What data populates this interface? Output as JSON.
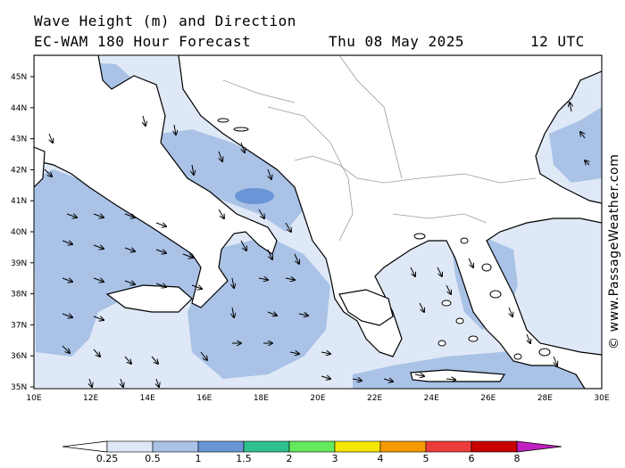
{
  "header": {
    "line1": "Wave Height (m) and Direction",
    "model": "EC-WAM 180 Hour Forecast",
    "date": "Thu 08 May 2025",
    "time": "12 UTC"
  },
  "copyright": "© www.PassageWeather.com",
  "axes": {
    "lat_labels": [
      "45N",
      "44N",
      "43N",
      "42N",
      "41N",
      "40N",
      "39N",
      "38N",
      "37N",
      "36N",
      "35N"
    ],
    "lon_labels": [
      "10E",
      "12E",
      "14E",
      "16E",
      "18E",
      "20E",
      "22E",
      "24E",
      "26E",
      "28E",
      "30E"
    ]
  },
  "colorbar": {
    "labels": [
      "0.25",
      "0.5",
      "1",
      "1.5",
      "2",
      "3",
      "4",
      "5",
      "6",
      "8"
    ],
    "colors": [
      "#dfe8f6",
      "#a9c2e6",
      "#6a95d6",
      "#2fc090",
      "#64e85c",
      "#f5e600",
      "#f59a00",
      "#ec3c3c",
      "#c80000",
      "#c020c0"
    ]
  },
  "map_colors": {
    "land": "#ffffff",
    "sea_low": "#dfe8f6",
    "sea_mid": "#a9c2e6",
    "sea_high": "#6a95d6"
  }
}
